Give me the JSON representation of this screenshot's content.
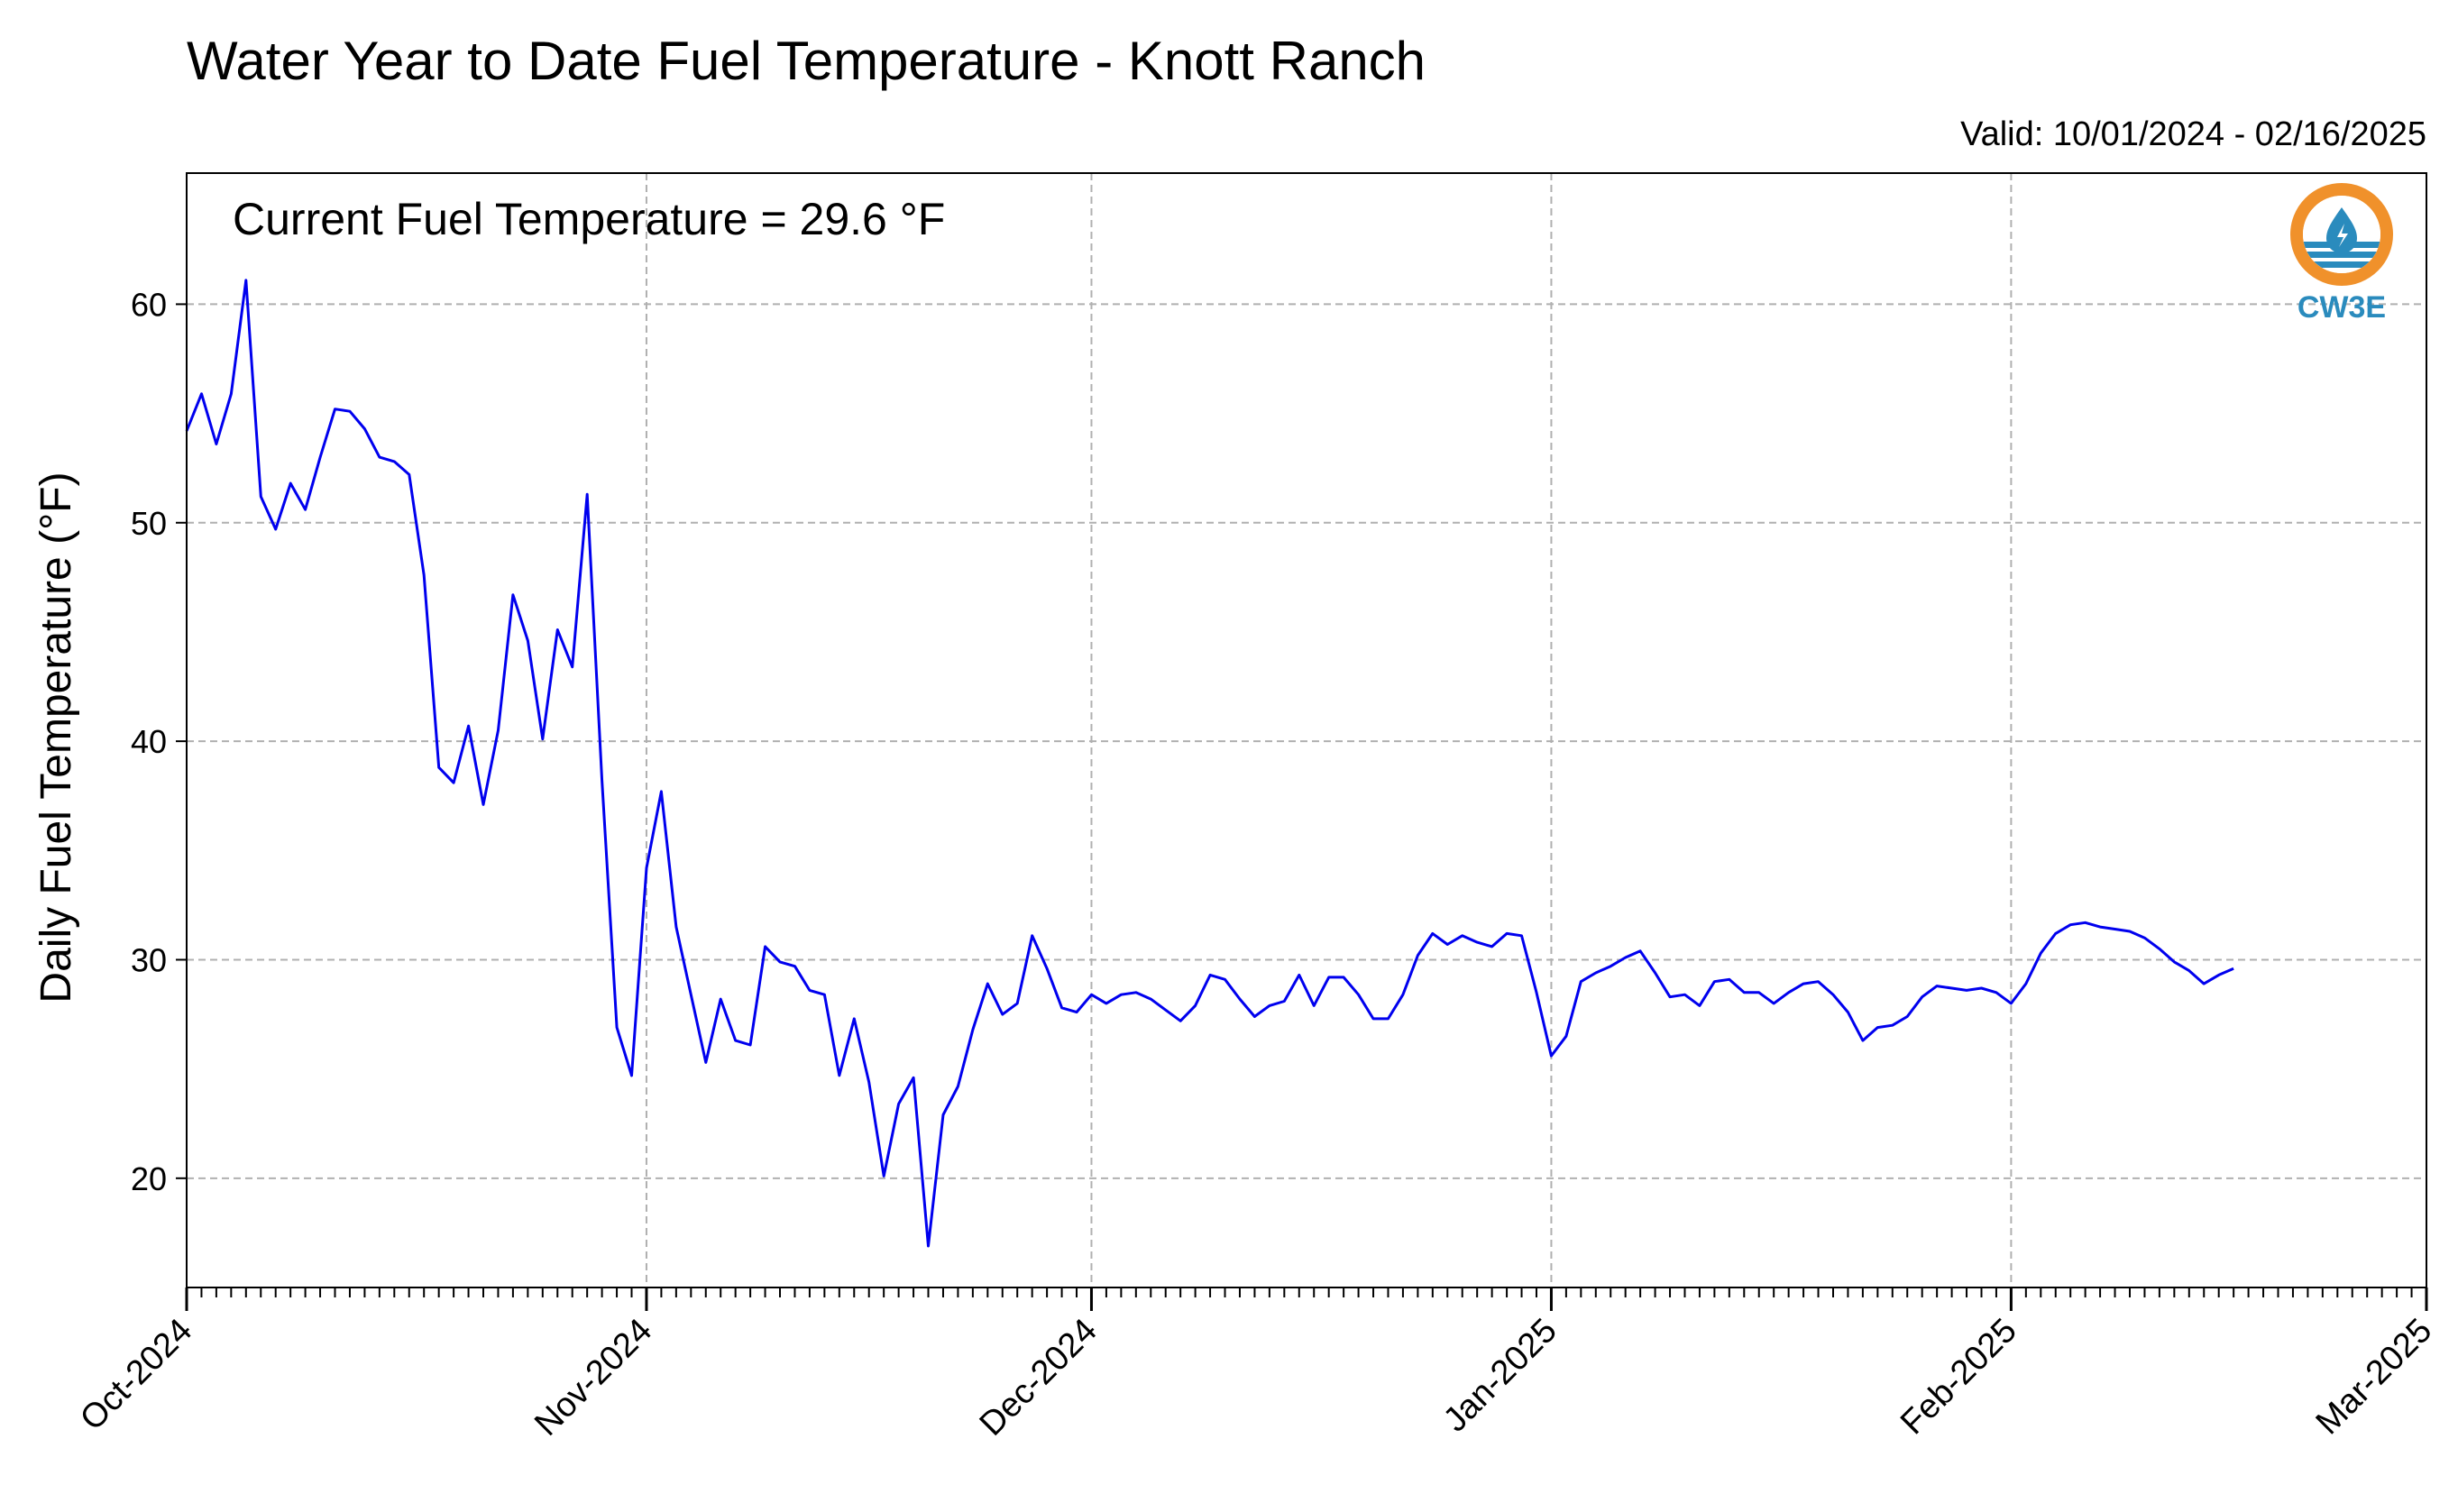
{
  "chart_data": {
    "type": "line",
    "title": "Water Year to Date Fuel Temperature - Knott Ranch",
    "subtitle": "Valid: 10/01/2024 - 02/16/2025",
    "annotation": "Current Fuel Temperature = 29.6 °F",
    "ylabel": "Daily Fuel Temperature (°F)",
    "xlabel": "",
    "ylim": [
      15,
      66
    ],
    "yticks": [
      20,
      30,
      40,
      50,
      60
    ],
    "xlim": [
      "2024-10-01",
      "2025-03-01"
    ],
    "xticks": [
      {
        "date": "2024-10-01",
        "label": "Oct-2024"
      },
      {
        "date": "2024-11-01",
        "label": "Nov-2024"
      },
      {
        "date": "2024-12-01",
        "label": "Dec-2024"
      },
      {
        "date": "2025-01-01",
        "label": "Jan-2025"
      },
      {
        "date": "2025-02-01",
        "label": "Feb-2025"
      },
      {
        "date": "2025-03-01",
        "label": "Mar-2025"
      }
    ],
    "grid": true,
    "line_color": "#0000ee",
    "series": [
      {
        "start_date": "2024-10-01",
        "values": [
          54.2,
          55.9,
          53.6,
          55.9,
          61.1,
          51.2,
          49.7,
          51.8,
          50.6,
          53.0,
          55.2,
          55.1,
          54.3,
          53.0,
          52.8,
          52.2,
          47.6,
          38.8,
          38.1,
          40.7,
          37.1,
          40.5,
          46.7,
          44.6,
          40.1,
          45.1,
          43.4,
          51.3,
          38.2,
          26.9,
          24.7,
          34.2,
          37.7,
          31.5,
          28.4,
          25.3,
          28.2,
          26.3,
          26.1,
          30.6,
          29.9,
          29.7,
          28.6,
          28.4,
          24.7,
          27.3,
          24.4,
          20.1,
          23.4,
          24.6,
          16.9,
          22.9,
          24.2,
          26.8,
          28.9,
          27.5,
          28.0,
          31.1,
          29.6,
          27.8,
          27.6,
          28.4,
          28.0,
          28.4,
          28.5,
          28.2,
          27.7,
          27.2,
          27.9,
          29.3,
          29.1,
          28.2,
          27.4,
          27.9,
          28.1,
          29.3,
          27.9,
          29.2,
          29.2,
          28.4,
          27.3,
          27.3,
          28.4,
          30.2,
          31.2,
          30.7,
          31.1,
          30.8,
          30.6,
          31.2,
          31.1,
          28.5,
          25.6,
          26.5,
          29.0,
          29.4,
          29.7,
          30.1,
          30.4,
          29.4,
          28.3,
          28.4,
          27.9,
          29.0,
          29.1,
          28.5,
          28.5,
          28.0,
          28.5,
          28.9,
          29.0,
          28.4,
          27.6,
          26.3,
          26.9,
          27.0,
          27.4,
          28.3,
          28.8,
          28.7,
          28.6,
          28.7,
          28.5,
          28.0,
          28.9,
          30.3,
          31.2,
          31.6,
          31.7,
          31.5,
          31.4,
          31.3,
          31.0,
          30.5,
          29.9,
          29.5,
          28.9,
          29.3,
          29.6
        ]
      }
    ]
  },
  "logo": {
    "text": "CW3E",
    "icon": "cw3e-water-drop-logo-icon",
    "colors": {
      "orange": "#f0912b",
      "blue": "#2a8bbd"
    }
  }
}
